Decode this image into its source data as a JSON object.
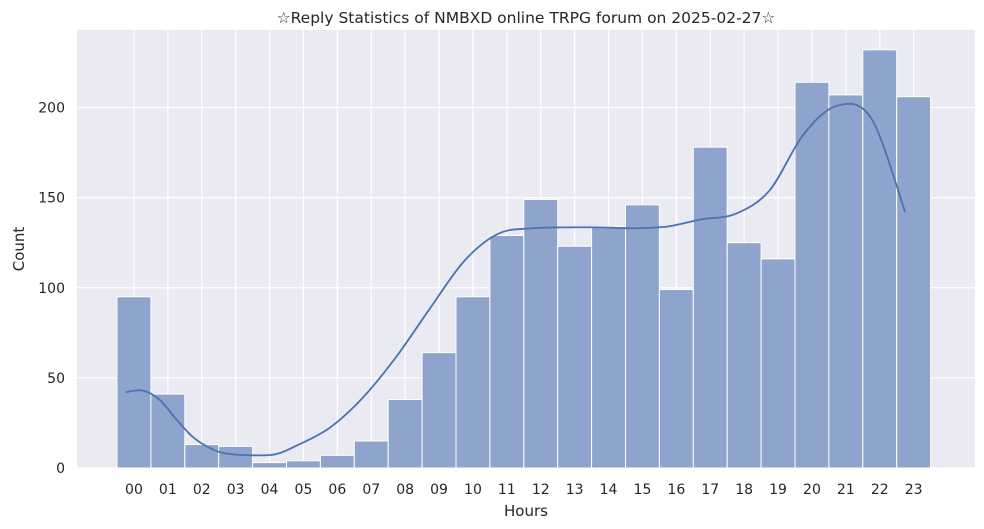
{
  "chart_data": {
    "type": "bar",
    "title": "☆Reply Statistics of NMBXD online TRPG forum on 2025-02-27☆",
    "xlabel": "Hours",
    "ylabel": "Count",
    "categories": [
      "00",
      "01",
      "02",
      "03",
      "04",
      "05",
      "06",
      "07",
      "08",
      "09",
      "10",
      "11",
      "12",
      "13",
      "14",
      "15",
      "16",
      "17",
      "18",
      "19",
      "20",
      "21",
      "22",
      "23"
    ],
    "values": [
      95,
      41,
      13,
      12,
      3,
      4,
      7,
      15,
      38,
      64,
      95,
      129,
      149,
      123,
      134,
      146,
      99,
      178,
      125,
      116,
      214,
      207,
      232,
      206
    ],
    "ylim": [
      0,
      243
    ],
    "yticks": [
      0,
      50,
      100,
      150,
      200
    ],
    "kde_values": [
      42,
      43,
      38,
      27,
      17,
      11,
      8,
      7,
      8,
      12,
      22,
      39,
      62,
      89,
      115,
      130,
      133,
      133.5,
      133.5,
      133,
      134,
      138,
      141,
      154,
      185,
      201,
      194,
      142
    ],
    "kde_x": [
      0,
      0.5,
      1,
      1.5,
      2,
      2.5,
      3,
      4,
      4.5,
      5,
      6,
      7,
      8,
      9,
      10,
      11,
      12,
      13,
      14,
      15,
      16,
      17,
      18,
      19,
      20,
      21,
      22,
      23
    ],
    "grid": true,
    "colors": {
      "bar_fill": "#8ea4cc",
      "bar_stroke": "#ffffff",
      "kde_line": "#4c72b0",
      "plot_bg": "#eaeaf2",
      "grid": "#ffffff"
    }
  }
}
